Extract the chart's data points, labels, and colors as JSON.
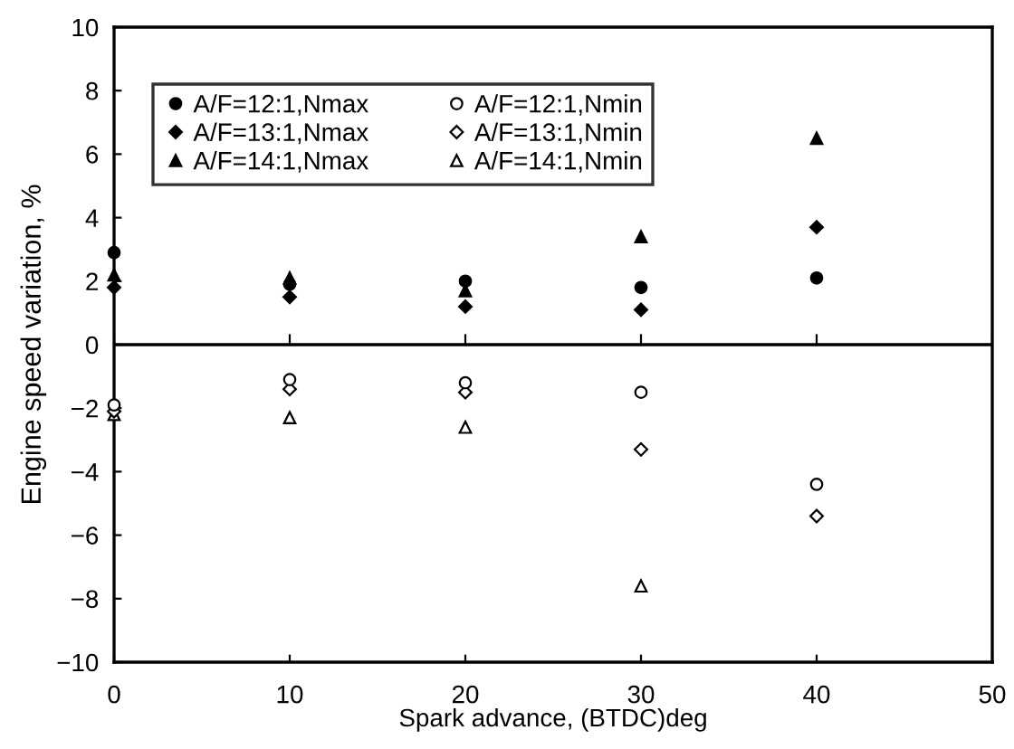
{
  "chart_data": {
    "type": "scatter",
    "xlabel": "Spark advance, (BTDC)deg",
    "ylabel": "Engine speed variation, %",
    "x": [
      0,
      10,
      20,
      30,
      40
    ],
    "series": [
      {
        "name": "A/F=12:1,Nmax",
        "color": "#000000",
        "marker": "circle",
        "values": [
          2.9,
          1.9,
          2.0,
          1.8,
          2.1
        ]
      },
      {
        "name": "A/F=13:1,Nmax",
        "color": "#000000",
        "marker": "diamond",
        "values": [
          1.8,
          1.5,
          1.2,
          1.1,
          3.7
        ]
      },
      {
        "name": "A/F=14:1,Nmax",
        "color": "#000000",
        "marker": "triangle",
        "values": [
          2.2,
          2.1,
          1.7,
          3.4,
          6.5
        ]
      },
      {
        "name": "A/F=12:1,Nmin",
        "color": "#ffffff",
        "marker": "circle",
        "values": [
          -1.9,
          -1.1,
          -1.2,
          -1.5,
          -4.4
        ]
      },
      {
        "name": "A/F=13:1,Nmin",
        "color": "#ffffff",
        "marker": "diamond",
        "values": [
          -2.1,
          -1.4,
          -1.5,
          -3.3,
          -5.4
        ]
      },
      {
        "name": "A/F=14:1,Nmin",
        "color": "#ffffff",
        "marker": "triangle",
        "values": [
          -2.2,
          -2.3,
          -2.6,
          -7.6,
          null
        ]
      }
    ],
    "xlim": [
      0,
      50
    ],
    "xticks": [
      0,
      10,
      20,
      30,
      40,
      50
    ],
    "ylim": [
      -10,
      10
    ],
    "yticks": [
      -10,
      -8,
      -6,
      -4,
      -2,
      0,
      2,
      4,
      6,
      8,
      10
    ],
    "ref_lines": [
      {
        "axis": "y",
        "value": 0,
        "color": "#000000"
      }
    ],
    "grid": false,
    "legend": "top left"
  }
}
